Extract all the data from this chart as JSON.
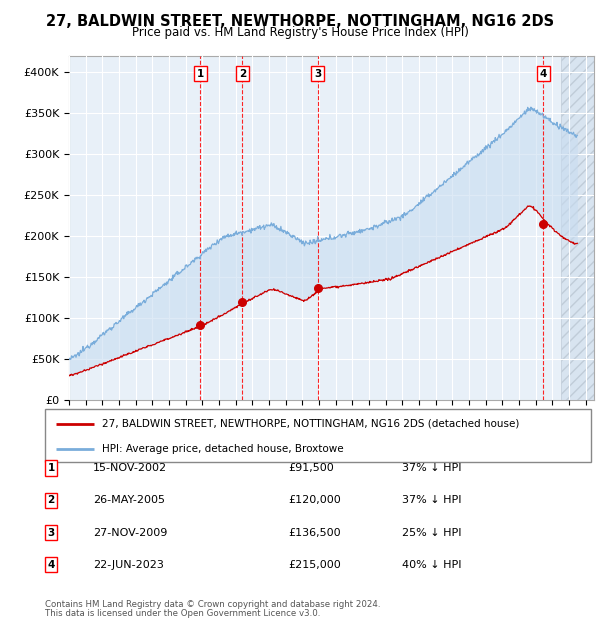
{
  "title": "27, BALDWIN STREET, NEWTHORPE, NOTTINGHAM, NG16 2DS",
  "subtitle": "Price paid vs. HM Land Registry's House Price Index (HPI)",
  "ylim": [
    0,
    420000
  ],
  "yticks": [
    0,
    50000,
    100000,
    150000,
    200000,
    250000,
    300000,
    350000,
    400000
  ],
  "ytick_labels": [
    "£0",
    "£50K",
    "£100K",
    "£150K",
    "£200K",
    "£250K",
    "£300K",
    "£350K",
    "£400K"
  ],
  "plot_bg_color": "#e8f0f8",
  "grid_color": "#cccccc",
  "sale_color": "#cc0000",
  "hpi_color": "#7aaddb",
  "hpi_fill_color": "#c8dcf0",
  "legend_sale_label": "27, BALDWIN STREET, NEWTHORPE, NOTTINGHAM, NG16 2DS (detached house)",
  "legend_hpi_label": "HPI: Average price, detached house, Broxtowe",
  "transactions": [
    {
      "num": 1,
      "date": "15-NOV-2002",
      "price": 91500,
      "pct": "37%",
      "x_year": 2002.88
    },
    {
      "num": 2,
      "date": "26-MAY-2005",
      "price": 120000,
      "pct": "37%",
      "x_year": 2005.4
    },
    {
      "num": 3,
      "date": "27-NOV-2009",
      "price": 136500,
      "pct": "25%",
      "x_year": 2009.91
    },
    {
      "num": 4,
      "date": "22-JUN-2023",
      "price": 215000,
      "pct": "40%",
      "x_year": 2023.47
    }
  ],
  "footer_line1": "Contains HM Land Registry data © Crown copyright and database right 2024.",
  "footer_line2": "This data is licensed under the Open Government Licence v3.0.",
  "xmin": 1995.0,
  "xmax": 2026.5,
  "hatch_xmin": 2024.5
}
